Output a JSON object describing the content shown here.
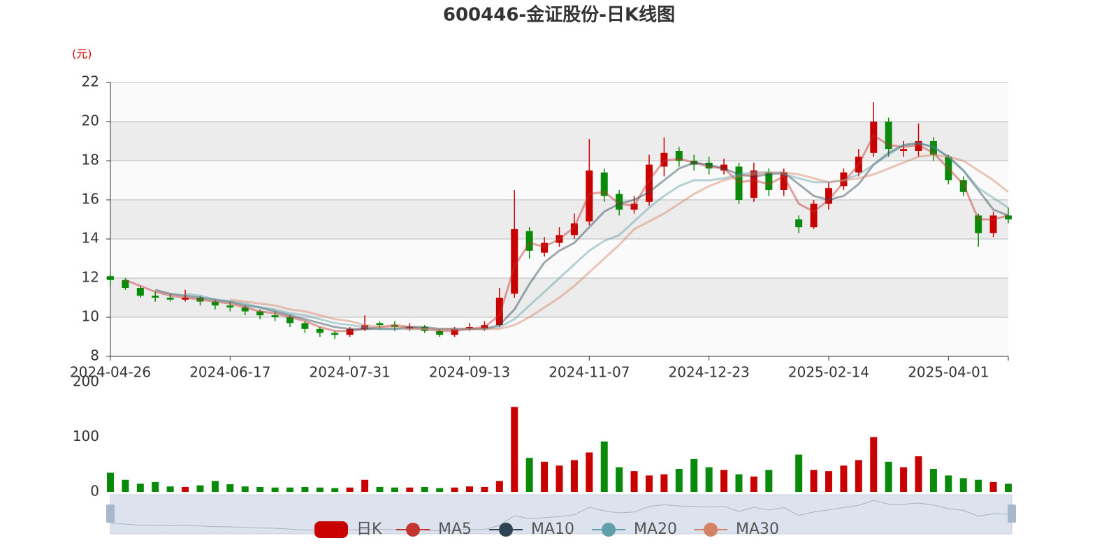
{
  "chart_data": [
    {
      "type": "candlestick",
      "title": "600446-金证股份-日K线图",
      "y_unit": "(元)",
      "categories": [
        "2024-04-26",
        null,
        null,
        null,
        null,
        null,
        null,
        null,
        "2024-06-17",
        null,
        null,
        null,
        null,
        null,
        null,
        null,
        "2024-07-31",
        null,
        null,
        null,
        null,
        null,
        null,
        null,
        "2024-09-13",
        null,
        null,
        null,
        null,
        null,
        null,
        null,
        "2024-11-07",
        null,
        null,
        null,
        null,
        null,
        null,
        null,
        "2024-12-23",
        null,
        null,
        null,
        null,
        null,
        null,
        null,
        "2025-02-14",
        null,
        null,
        null,
        null,
        null,
        null,
        null,
        "2025-04-01",
        null,
        null,
        null,
        null
      ],
      "series": [
        {
          "name": "日K",
          "up_color": "#c80000",
          "down_color": "#0a8a0a",
          "open": [
            12.1,
            11.9,
            11.5,
            11.1,
            11.0,
            10.9,
            11.0,
            10.8,
            10.6,
            10.5,
            10.3,
            10.1,
            10.0,
            9.7,
            9.4,
            9.2,
            9.1,
            9.4,
            9.7,
            9.6,
            9.4,
            9.5,
            9.3,
            9.1,
            9.4,
            9.4,
            9.6,
            11.2,
            14.4,
            13.3,
            13.8,
            14.2,
            14.9,
            17.4,
            16.3,
            15.5,
            15.9,
            17.7,
            18.5,
            18.0,
            17.9,
            17.5,
            17.7,
            16.1,
            17.4,
            16.5,
            15.0,
            14.6,
            15.8,
            16.7,
            17.4,
            18.4,
            20.0,
            18.5,
            18.5,
            19.0,
            18.2,
            17.0,
            15.2,
            14.3,
            15.2
          ],
          "close": [
            11.9,
            11.5,
            11.1,
            11.0,
            10.9,
            11.0,
            10.8,
            10.6,
            10.5,
            10.3,
            10.1,
            10.0,
            9.7,
            9.4,
            9.2,
            9.1,
            9.4,
            9.6,
            9.6,
            9.5,
            9.5,
            9.3,
            9.1,
            9.4,
            9.5,
            9.6,
            11.0,
            14.5,
            13.4,
            13.8,
            14.2,
            14.8,
            17.5,
            16.2,
            15.5,
            15.8,
            17.8,
            18.4,
            18.0,
            17.8,
            17.6,
            17.8,
            16.0,
            17.5,
            16.5,
            17.4,
            14.6,
            15.8,
            16.6,
            17.4,
            18.2,
            20.0,
            18.6,
            18.6,
            19.0,
            18.3,
            17.0,
            16.4,
            14.3,
            15.2,
            15.0
          ],
          "low": [
            11.6,
            11.4,
            11.0,
            10.8,
            10.8,
            10.8,
            10.6,
            10.4,
            10.3,
            10.1,
            9.9,
            9.8,
            9.5,
            9.2,
            9.0,
            8.9,
            9.0,
            9.3,
            9.4,
            9.3,
            9.3,
            9.2,
            9.0,
            9.0,
            9.3,
            9.3,
            9.5,
            11.0,
            13.0,
            13.1,
            13.6,
            14.0,
            14.7,
            15.9,
            15.2,
            15.3,
            15.7,
            17.2,
            17.7,
            17.5,
            17.3,
            17.3,
            15.8,
            15.9,
            16.2,
            16.2,
            14.3,
            14.5,
            15.5,
            16.5,
            17.2,
            18.2,
            18.2,
            18.2,
            18.2,
            18.0,
            16.8,
            16.2,
            13.6,
            14.1,
            14.8
          ],
          "high": [
            12.2,
            12.0,
            11.6,
            11.3,
            11.2,
            11.4,
            11.1,
            10.9,
            10.8,
            10.6,
            10.4,
            10.3,
            10.1,
            9.8,
            9.5,
            9.3,
            9.5,
            10.1,
            9.8,
            9.8,
            9.7,
            9.6,
            9.4,
            9.5,
            9.7,
            9.8,
            11.5,
            16.5,
            14.6,
            14.1,
            14.6,
            15.3,
            19.1,
            17.6,
            16.5,
            16.2,
            18.3,
            19.2,
            18.7,
            18.3,
            18.2,
            18.1,
            17.9,
            17.9,
            17.6,
            17.6,
            15.2,
            16.0,
            16.9,
            17.6,
            18.6,
            21.0,
            20.2,
            19.0,
            19.9,
            19.2,
            18.3,
            17.2,
            15.3,
            15.4,
            15.6
          ]
        },
        {
          "name": "MA5",
          "color": "#c23531",
          "values": [
            null,
            11.9,
            11.6,
            11.3,
            11.1,
            11.0,
            10.9,
            10.8,
            10.7,
            10.5,
            10.3,
            10.2,
            10.0,
            9.8,
            9.5,
            9.3,
            9.3,
            9.4,
            9.5,
            9.6,
            9.5,
            9.4,
            9.3,
            9.3,
            9.4,
            9.5,
            10.1,
            12.6,
            13.8,
            13.6,
            14.0,
            14.6,
            16.3,
            16.4,
            15.8,
            15.7,
            17.0,
            18.0,
            18.1,
            17.9,
            17.7,
            17.6,
            16.9,
            17.0,
            16.8,
            17.2,
            15.8,
            15.4,
            16.0,
            16.9,
            17.8,
            19.3,
            18.8,
            18.7,
            18.8,
            18.4,
            17.6,
            16.8,
            15.0,
            15.0,
            15.2
          ]
        },
        {
          "name": "MA10",
          "color": "#2f4554",
          "values": [
            null,
            null,
            null,
            11.4,
            11.2,
            11.1,
            11.0,
            10.9,
            10.8,
            10.6,
            10.5,
            10.3,
            10.1,
            9.9,
            9.7,
            9.5,
            9.4,
            9.4,
            9.4,
            9.4,
            9.5,
            9.5,
            9.4,
            9.4,
            9.4,
            9.4,
            9.6,
            10.4,
            11.7,
            12.8,
            13.4,
            13.8,
            14.6,
            15.4,
            15.8,
            16.0,
            16.4,
            17.0,
            17.6,
            17.9,
            17.8,
            17.6,
            17.3,
            17.2,
            17.3,
            17.4,
            16.8,
            16.2,
            16.0,
            16.2,
            16.8,
            17.8,
            18.4,
            18.8,
            18.9,
            18.7,
            18.2,
            17.5,
            16.5,
            15.5,
            15.2
          ]
        },
        {
          "name": "MA20",
          "color": "#61a0a8",
          "values": [
            null,
            null,
            null,
            null,
            null,
            11.2,
            11.1,
            10.9,
            10.8,
            10.7,
            10.5,
            10.4,
            10.2,
            10.1,
            9.9,
            9.7,
            9.6,
            9.5,
            9.4,
            9.4,
            9.4,
            9.4,
            9.4,
            9.4,
            9.4,
            9.4,
            9.5,
            9.9,
            10.6,
            11.3,
            12.0,
            12.7,
            13.4,
            13.9,
            14.2,
            14.9,
            15.6,
            16.2,
            16.7,
            17.0,
            17.0,
            17.1,
            17.3,
            17.4,
            17.4,
            17.3,
            17.1,
            16.9,
            16.9,
            17.0,
            17.3,
            17.8,
            18.3,
            18.8,
            18.9,
            18.7,
            18.2,
            17.5,
            16.6,
            16.1,
            15.6
          ]
        },
        {
          "name": "MA30",
          "color": "#d48265",
          "values": [
            null,
            null,
            null,
            null,
            null,
            null,
            null,
            null,
            10.9,
            10.8,
            10.7,
            10.6,
            10.4,
            10.3,
            10.1,
            9.9,
            9.8,
            9.6,
            9.5,
            9.5,
            9.4,
            9.4,
            9.4,
            9.4,
            9.4,
            9.4,
            9.4,
            9.6,
            10.0,
            10.5,
            11.0,
            11.6,
            12.3,
            13.0,
            13.7,
            14.5,
            14.9,
            15.3,
            15.8,
            16.3,
            16.7,
            17.0,
            17.2,
            17.3,
            17.4,
            17.4,
            17.3,
            17.1,
            16.9,
            17.0,
            17.1,
            17.3,
            17.6,
            17.9,
            18.2,
            18.3,
            18.2,
            18.0,
            17.5,
            17.0,
            16.4
          ]
        }
      ],
      "ylim": [
        8,
        22
      ],
      "yticks": [
        8,
        10,
        12,
        14,
        16,
        18,
        20,
        22
      ],
      "grid": true
    },
    {
      "type": "bar",
      "values": [
        35,
        22,
        15,
        18,
        10,
        9,
        12,
        20,
        14,
        10,
        9,
        8,
        8,
        9,
        8,
        7,
        8,
        22,
        9,
        8,
        8,
        9,
        7,
        8,
        10,
        9,
        20,
        155,
        62,
        55,
        48,
        58,
        72,
        92,
        45,
        38,
        30,
        32,
        42,
        60,
        45,
        40,
        32,
        28,
        40,
        null,
        68,
        40,
        38,
        48,
        58,
        100,
        55,
        45,
        65,
        42,
        30,
        25,
        22,
        18,
        15
      ],
      "ylim": [
        0,
        200
      ],
      "yticks": [
        0,
        100,
        200
      ]
    }
  ]
}
